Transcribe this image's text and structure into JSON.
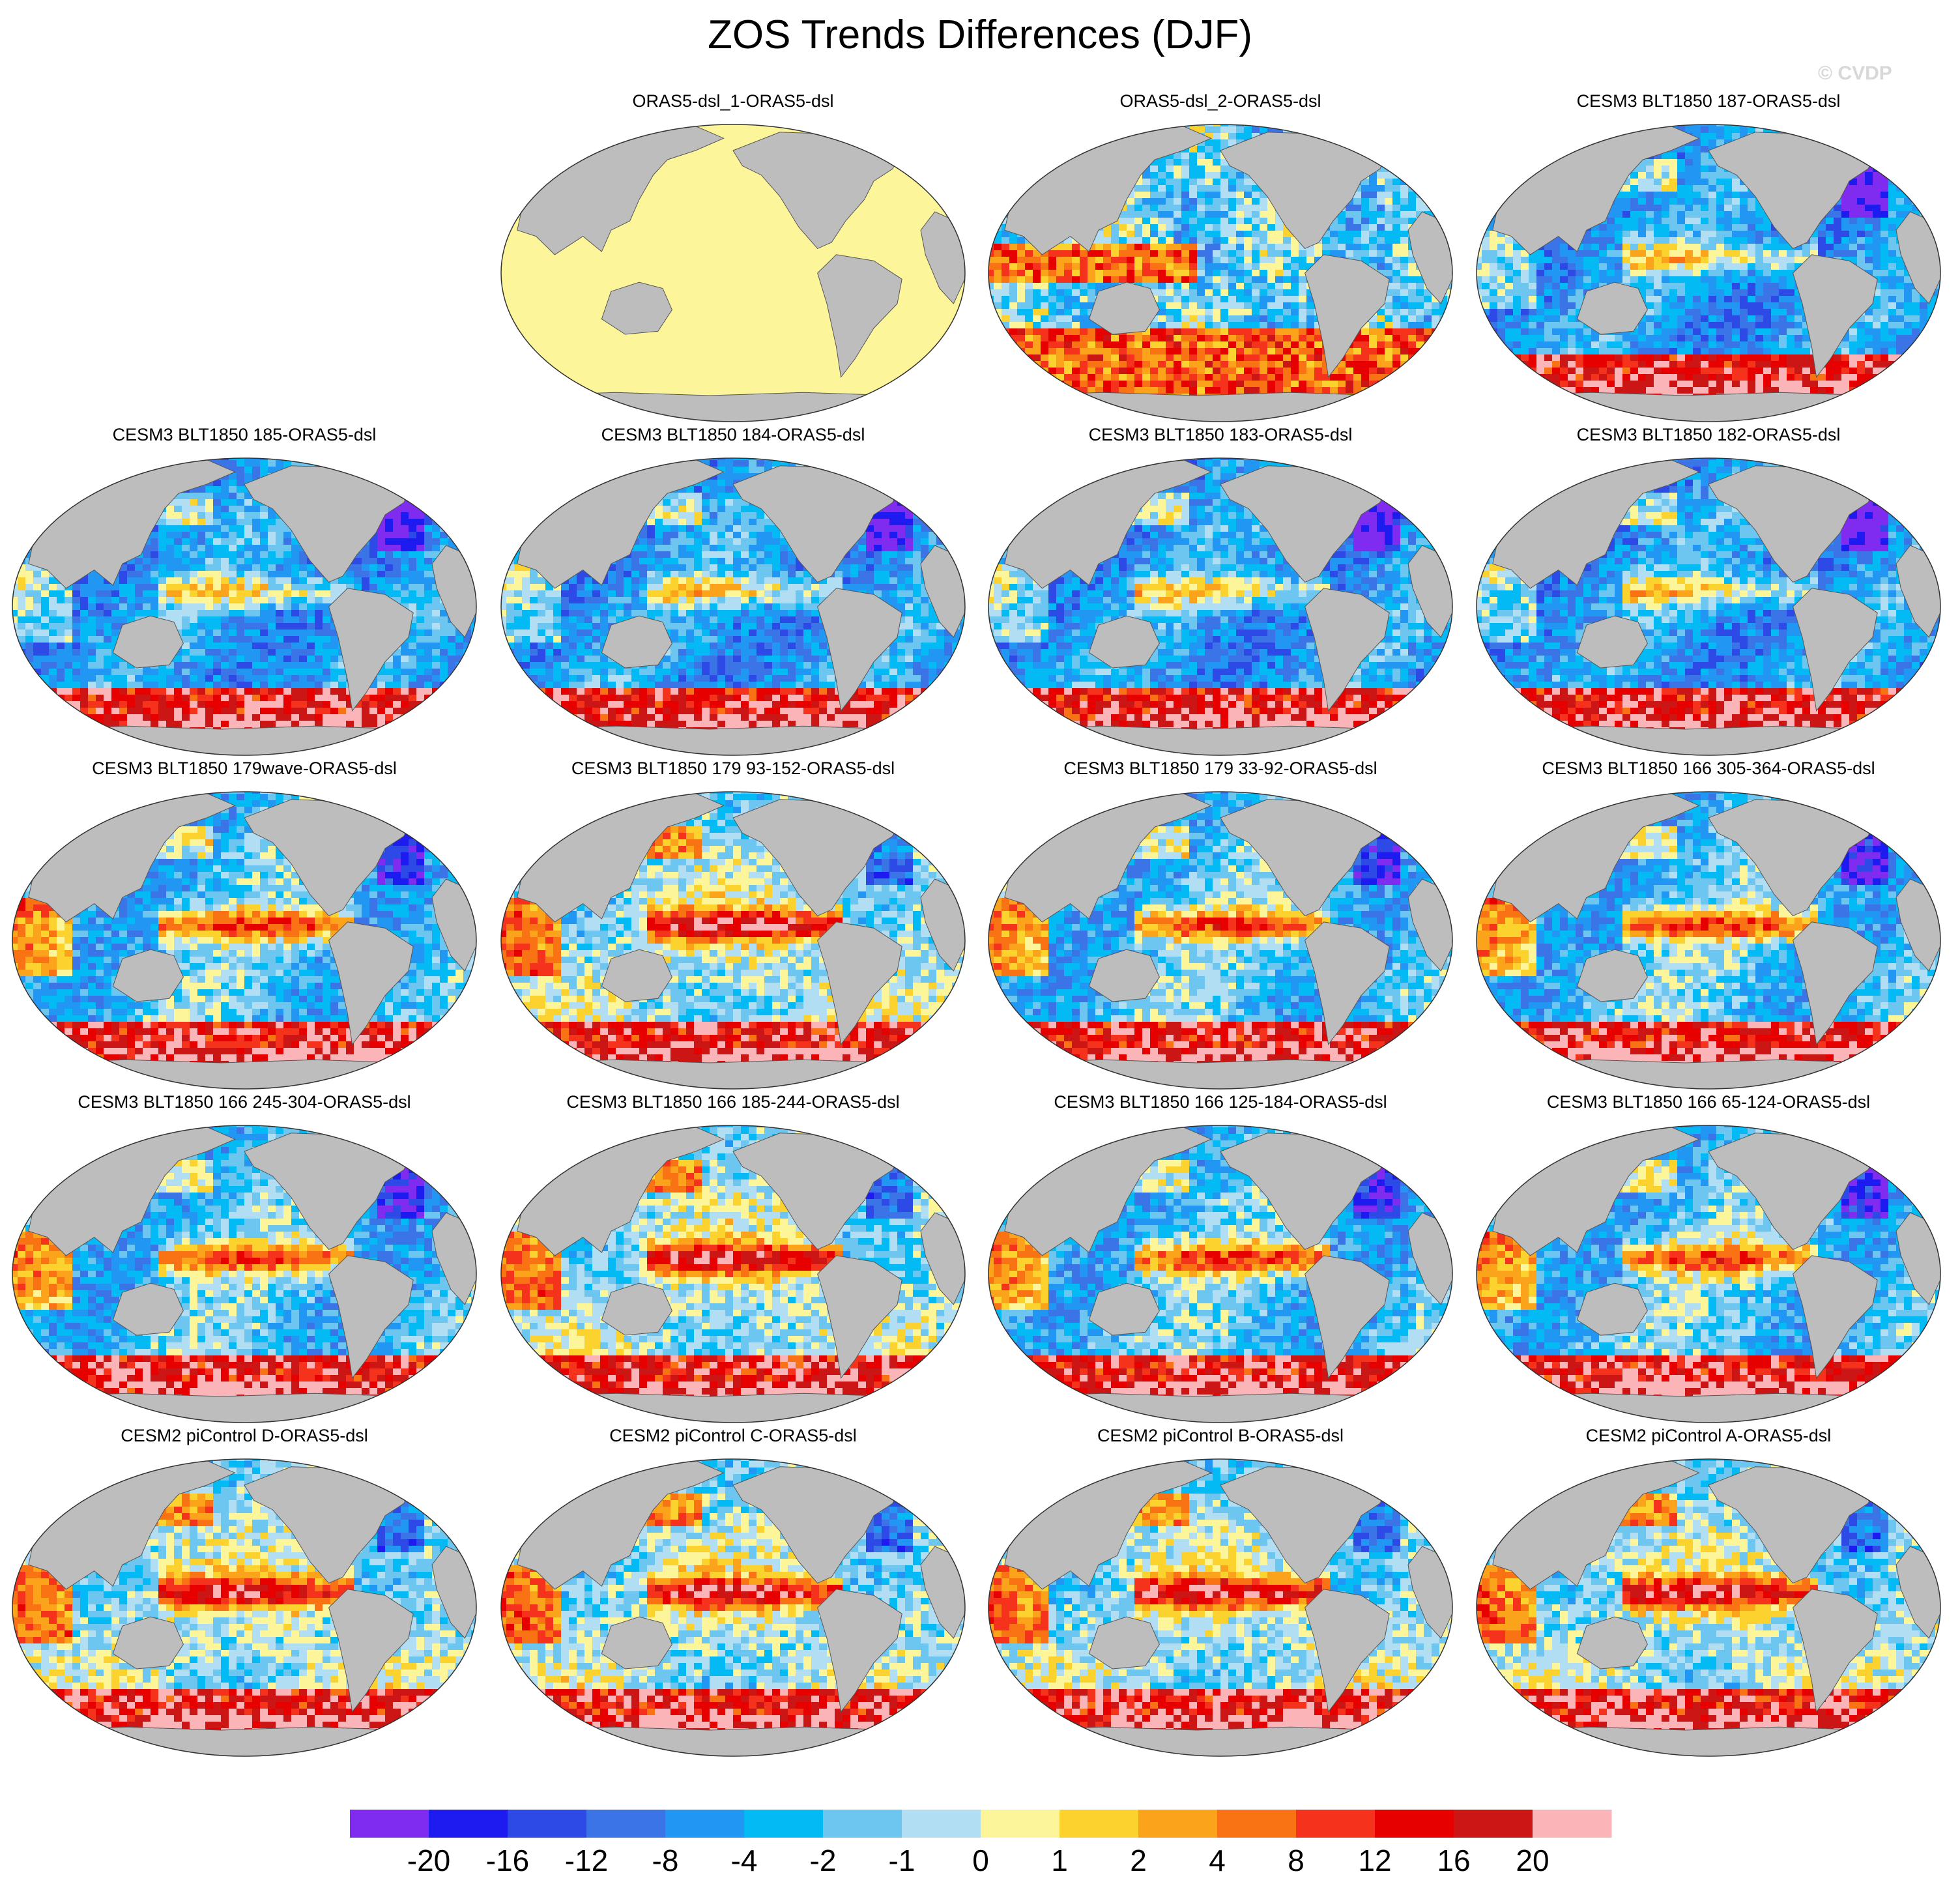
{
  "title": "ZOS Trends Differences (DJF)",
  "watermark": "© CVDP",
  "colors": {
    "land": "#bdbdbd",
    "uniform_panel": "#fdf59a"
  },
  "legend": {
    "colors": [
      "#7f2cf0",
      "#1d1bf0",
      "#2e4ae6",
      "#3b74e6",
      "#2196f3",
      "#04baf5",
      "#6dc6f0",
      "#b1def3",
      "#fdf59a",
      "#fbd22e",
      "#fba31a",
      "#f97314",
      "#f5331d",
      "#e60000",
      "#cc1515",
      "#fbb5b8"
    ],
    "labels": [
      "-20",
      "-16",
      "-12",
      "-8",
      "-4",
      "-2",
      "-1",
      "0",
      "1",
      "2",
      "4",
      "8",
      "12",
      "16",
      "20"
    ]
  },
  "panels": [
    {
      "title": "ORAS5-dsl_1-ORAS5-dsl",
      "pattern": "uniform"
    },
    {
      "title": "ORAS5-dsl_2-ORAS5-dsl",
      "pattern": "oras"
    },
    {
      "title": "CESM3 BLT1850 187-ORAS5-dsl",
      "pattern": "cool"
    },
    {
      "title": "CESM3 BLT1850 185-ORAS5-dsl",
      "pattern": "cool"
    },
    {
      "title": "CESM3 BLT1850 184-ORAS5-dsl",
      "pattern": "cool"
    },
    {
      "title": "CESM3 BLT1850 183-ORAS5-dsl",
      "pattern": "cool"
    },
    {
      "title": "CESM3 BLT1850 182-ORAS5-dsl",
      "pattern": "cool"
    },
    {
      "title": "CESM3 BLT1850 179wave-ORAS5-dsl",
      "pattern": "mixed"
    },
    {
      "title": "CESM3 BLT1850 179 93-152-ORAS5-dsl",
      "pattern": "warm"
    },
    {
      "title": "CESM3 BLT1850 179 33-92-ORAS5-dsl",
      "pattern": "mixed"
    },
    {
      "title": "CESM3 BLT1850 166 305-364-ORAS5-dsl",
      "pattern": "mixed"
    },
    {
      "title": "CESM3 BLT1850 166 245-304-ORAS5-dsl",
      "pattern": "mixed"
    },
    {
      "title": "CESM3 BLT1850 166 185-244-ORAS5-dsl",
      "pattern": "warm"
    },
    {
      "title": "CESM3 BLT1850 166 125-184-ORAS5-dsl",
      "pattern": "mixed"
    },
    {
      "title": "CESM3 BLT1850 166 65-124-ORAS5-dsl",
      "pattern": "mixed"
    },
    {
      "title": "CESM2 piControl D-ORAS5-dsl",
      "pattern": "warm"
    },
    {
      "title": "CESM2 piControl C-ORAS5-dsl",
      "pattern": "warm"
    },
    {
      "title": "CESM2 piControl B-ORAS5-dsl",
      "pattern": "warm"
    },
    {
      "title": "CESM2 piControl A-ORAS5-dsl",
      "pattern": "warm"
    }
  ]
}
